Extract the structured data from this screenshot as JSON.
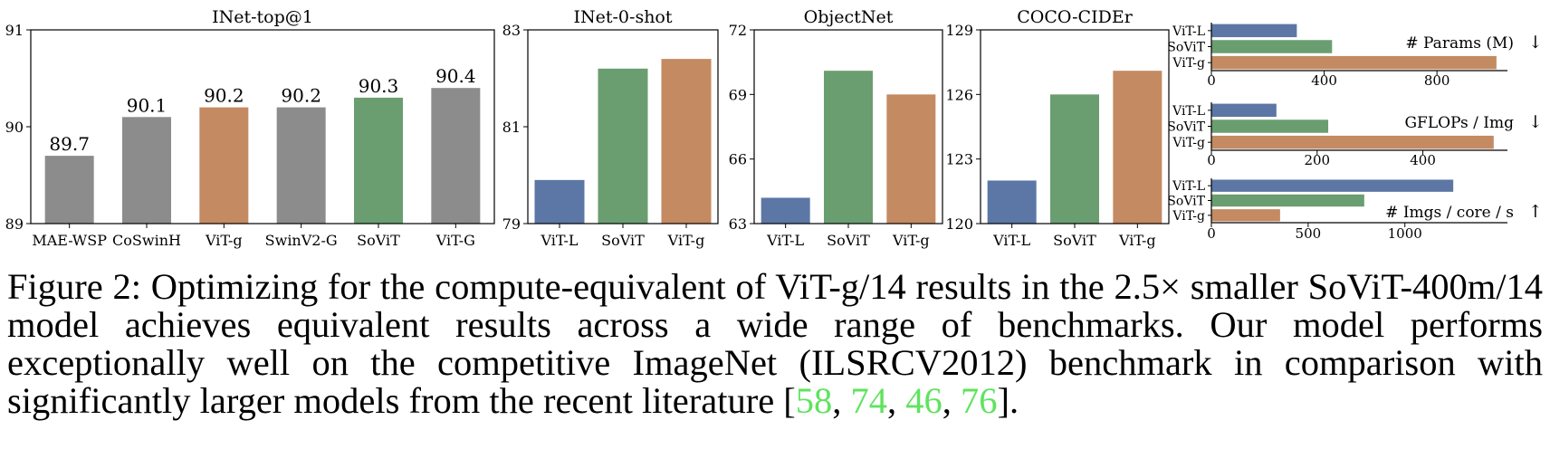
{
  "chart_data": [
    {
      "id": "inet_top1",
      "type": "bar",
      "title": "INet-top@1",
      "categories": [
        "MAE-WSP",
        "CoSwinH",
        "ViT-g",
        "SwinV2-G",
        "SoViT",
        "ViT-G"
      ],
      "values": [
        89.7,
        90.1,
        90.2,
        90.2,
        90.3,
        90.4
      ],
      "value_labels": [
        "89.7",
        "90.1",
        "90.2",
        "90.2",
        "90.3",
        "90.4"
      ],
      "colors": [
        "#8c8c8c",
        "#8c8c8c",
        "#c48a62",
        "#8c8c8c",
        "#6a9e70",
        "#8c8c8c"
      ],
      "ylim": [
        89,
        91
      ],
      "yticks": [
        "89",
        "90",
        "91"
      ]
    },
    {
      "id": "inet_0shot",
      "type": "bar",
      "title": "INet-0-shot",
      "categories": [
        "ViT-L",
        "SoViT",
        "ViT-g"
      ],
      "values": [
        79.9,
        82.2,
        82.4
      ],
      "colors": [
        "#5c77a5",
        "#6a9e70",
        "#c48a62"
      ],
      "ylim": [
        79,
        83
      ],
      "yticks": [
        "79",
        "81",
        "83"
      ]
    },
    {
      "id": "objectnet",
      "type": "bar",
      "title": "ObjectNet",
      "categories": [
        "ViT-L",
        "SoViT",
        "ViT-g"
      ],
      "values": [
        64.2,
        70.1,
        69.0
      ],
      "colors": [
        "#5c77a5",
        "#6a9e70",
        "#c48a62"
      ],
      "ylim": [
        63,
        72
      ],
      "yticks": [
        "63",
        "66",
        "69",
        "72"
      ]
    },
    {
      "id": "coco_cider",
      "type": "bar",
      "title": "COCO-CIDEr",
      "categories": [
        "ViT-L",
        "SoViT",
        "ViT-g"
      ],
      "values": [
        122.0,
        126.0,
        127.1
      ],
      "colors": [
        "#5c77a5",
        "#6a9e70",
        "#c48a62"
      ],
      "ylim": [
        120,
        129
      ],
      "yticks": [
        "120",
        "123",
        "126",
        "129"
      ]
    },
    {
      "id": "params",
      "type": "bar",
      "orientation": "horizontal",
      "label": "# Params (M)",
      "arrow": "↓",
      "categories": [
        "ViT-L",
        "SoViT",
        "ViT-g"
      ],
      "values": [
        303,
        428,
        1011
      ],
      "colors": [
        "#5c77a5",
        "#6a9e70",
        "#c48a62"
      ],
      "xlim": [
        0,
        1050
      ],
      "xticks": [
        "0",
        "400",
        "800"
      ]
    },
    {
      "id": "gflops",
      "type": "bar",
      "orientation": "horizontal",
      "label": "GFLOPs / Img",
      "arrow": "↓",
      "categories": [
        "ViT-L",
        "SoViT",
        "ViT-g"
      ],
      "values": [
        123,
        221,
        534
      ],
      "colors": [
        "#5c77a5",
        "#6a9e70",
        "#c48a62"
      ],
      "xlim": [
        0,
        560
      ],
      "xticks": [
        "0",
        "200",
        "400"
      ]
    },
    {
      "id": "throughput",
      "type": "bar",
      "orientation": "horizontal",
      "label": "# Imgs / core / s",
      "arrow": "↑",
      "categories": [
        "ViT-L",
        "SoViT",
        "ViT-g"
      ],
      "values": [
        1250,
        790,
        355
      ],
      "colors": [
        "#5c77a5",
        "#6a9e70",
        "#c48a62"
      ],
      "xlim": [
        0,
        1530
      ],
      "xticks": [
        "0",
        "500",
        "1000"
      ]
    }
  ],
  "caption": {
    "text": "Figure 2: Optimizing for the compute-equivalent of ViT-g/14 results in the 2.5× smaller SoViT-400m/14 model achieves equivalent results across a wide range of benchmarks. Our model performs exceptionally well on the competitive ImageNet (ILSRCV2012) benchmark in comparison with significantly larger models from the recent literature [",
    "citations": [
      "58",
      "74",
      "46",
      "76"
    ],
    "sep": ", ",
    "close": "]."
  }
}
